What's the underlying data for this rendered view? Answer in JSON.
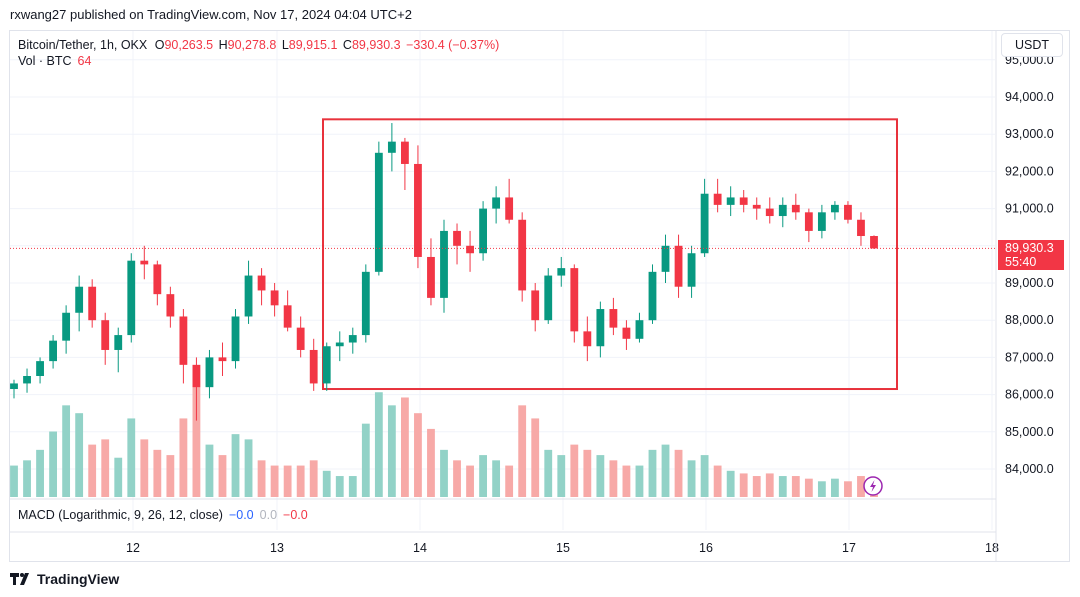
{
  "publisher": {
    "text": "rxwang27 published on TradingView.com, Nov 17, 2024 04:04 UTC+2"
  },
  "legend": {
    "symbol": "Bitcoin/Tether, 1h, OKX",
    "o_label": "O",
    "o_value": "90,263.5",
    "h_label": "H",
    "h_value": "90,278.8",
    "l_label": "L",
    "l_value": "89,915.1",
    "c_label": "C",
    "c_value": "89,930.3",
    "change": "−330.4 (−0.37%)"
  },
  "volume": {
    "label": "Vol · BTC",
    "value": "64"
  },
  "currency": "USDT",
  "last_price": {
    "value": "89,930.3",
    "countdown": "55:40",
    "color": "#f23645"
  },
  "macd": {
    "label": "MACD (Logarithmic, 9, 26, 12, close)",
    "v1": "−0.0",
    "v2": "0.0",
    "v3": "−0.0"
  },
  "brand": "TradingView",
  "colors": {
    "up": "#089981",
    "down": "#f23645",
    "up_vol": "#92d2c7",
    "down_vol": "#f7a9a7",
    "box": "#e8323c"
  },
  "chart_data": {
    "type": "candlestick",
    "y_ticks": [
      "84,000.0",
      "85,000.0",
      "86,000.0",
      "87,000.0",
      "88,000.0",
      "89,000.0",
      "90,000.0",
      "91,000.0",
      "92,000.0",
      "93,000.0",
      "94,000.0",
      "95,000.0"
    ],
    "x_ticks": [
      "12",
      "13",
      "14",
      "15",
      "16",
      "17",
      "18"
    ],
    "ylim": [
      83500,
      95300
    ],
    "annotation": {
      "type": "rectangle",
      "x_from": "Nov 13 ~08:00",
      "x_to": "Nov 17 ~06:00",
      "y_from": 86150,
      "y_to": 93400
    },
    "candles": [
      {
        "o": 86150,
        "h": 86400,
        "l": 85900,
        "c": 86300,
        "v": 12
      },
      {
        "o": 86300,
        "h": 86700,
        "l": 86050,
        "c": 86500,
        "v": 14
      },
      {
        "o": 86500,
        "h": 87000,
        "l": 86300,
        "c": 86900,
        "v": 18
      },
      {
        "o": 86900,
        "h": 87600,
        "l": 86700,
        "c": 87450,
        "v": 25
      },
      {
        "o": 87450,
        "h": 88400,
        "l": 87100,
        "c": 88200,
        "v": 35
      },
      {
        "o": 88200,
        "h": 89200,
        "l": 87700,
        "c": 88900,
        "v": 32
      },
      {
        "o": 88900,
        "h": 89100,
        "l": 87800,
        "c": 88000,
        "v": 20
      },
      {
        "o": 88000,
        "h": 88200,
        "l": 86800,
        "c": 87200,
        "v": 22
      },
      {
        "o": 87200,
        "h": 87800,
        "l": 86600,
        "c": 87600,
        "v": 15
      },
      {
        "o": 87600,
        "h": 89800,
        "l": 87400,
        "c": 89600,
        "v": 30
      },
      {
        "o": 89600,
        "h": 90000,
        "l": 89100,
        "c": 89500,
        "v": 22
      },
      {
        "o": 89500,
        "h": 89600,
        "l": 88400,
        "c": 88700,
        "v": 18
      },
      {
        "o": 88700,
        "h": 88900,
        "l": 87800,
        "c": 88100,
        "v": 16
      },
      {
        "o": 88100,
        "h": 88300,
        "l": 86300,
        "c": 86800,
        "v": 30
      },
      {
        "o": 86800,
        "h": 87000,
        "l": 85300,
        "c": 86200,
        "v": 42
      },
      {
        "o": 86200,
        "h": 87200,
        "l": 85900,
        "c": 87000,
        "v": 20
      },
      {
        "o": 87000,
        "h": 87400,
        "l": 86500,
        "c": 86900,
        "v": 16
      },
      {
        "o": 86900,
        "h": 88300,
        "l": 86700,
        "c": 88100,
        "v": 24
      },
      {
        "o": 88100,
        "h": 89600,
        "l": 87900,
        "c": 89200,
        "v": 22
      },
      {
        "o": 89200,
        "h": 89400,
        "l": 88400,
        "c": 88800,
        "v": 14
      },
      {
        "o": 88800,
        "h": 89000,
        "l": 88100,
        "c": 88400,
        "v": 12
      },
      {
        "o": 88400,
        "h": 88800,
        "l": 87700,
        "c": 87800,
        "v": 12
      },
      {
        "o": 87800,
        "h": 88100,
        "l": 87000,
        "c": 87200,
        "v": 12
      },
      {
        "o": 87200,
        "h": 87500,
        "l": 86100,
        "c": 86300,
        "v": 14
      },
      {
        "o": 86300,
        "h": 87400,
        "l": 86100,
        "c": 87300,
        "v": 10
      },
      {
        "o": 87300,
        "h": 87700,
        "l": 86900,
        "c": 87400,
        "v": 8
      },
      {
        "o": 87400,
        "h": 87800,
        "l": 87100,
        "c": 87600,
        "v": 8
      },
      {
        "o": 87600,
        "h": 89500,
        "l": 87400,
        "c": 89300,
        "v": 28
      },
      {
        "o": 89300,
        "h": 92800,
        "l": 89200,
        "c": 92500,
        "v": 40
      },
      {
        "o": 92500,
        "h": 93300,
        "l": 92000,
        "c": 92800,
        "v": 35
      },
      {
        "o": 92800,
        "h": 92900,
        "l": 91500,
        "c": 92200,
        "v": 38
      },
      {
        "o": 92200,
        "h": 92700,
        "l": 89400,
        "c": 89700,
        "v": 32
      },
      {
        "o": 89700,
        "h": 90200,
        "l": 88400,
        "c": 88600,
        "v": 26
      },
      {
        "o": 88600,
        "h": 90700,
        "l": 88200,
        "c": 90400,
        "v": 18
      },
      {
        "o": 90400,
        "h": 90600,
        "l": 89500,
        "c": 90000,
        "v": 14
      },
      {
        "o": 90000,
        "h": 90400,
        "l": 89300,
        "c": 89800,
        "v": 12
      },
      {
        "o": 89800,
        "h": 91200,
        "l": 89600,
        "c": 91000,
        "v": 16
      },
      {
        "o": 91000,
        "h": 91600,
        "l": 90600,
        "c": 91300,
        "v": 14
      },
      {
        "o": 91300,
        "h": 91800,
        "l": 90600,
        "c": 90700,
        "v": 12
      },
      {
        "o": 90700,
        "h": 90900,
        "l": 88500,
        "c": 88800,
        "v": 35
      },
      {
        "o": 88800,
        "h": 89000,
        "l": 87700,
        "c": 88000,
        "v": 30
      },
      {
        "o": 88000,
        "h": 89400,
        "l": 87900,
        "c": 89200,
        "v": 18
      },
      {
        "o": 89200,
        "h": 89700,
        "l": 88900,
        "c": 89400,
        "v": 16
      },
      {
        "o": 89400,
        "h": 89500,
        "l": 87400,
        "c": 87700,
        "v": 20
      },
      {
        "o": 87700,
        "h": 88100,
        "l": 86900,
        "c": 87300,
        "v": 18
      },
      {
        "o": 87300,
        "h": 88500,
        "l": 87000,
        "c": 88300,
        "v": 16
      },
      {
        "o": 88300,
        "h": 88600,
        "l": 87600,
        "c": 87800,
        "v": 14
      },
      {
        "o": 87800,
        "h": 88000,
        "l": 87200,
        "c": 87500,
        "v": 12
      },
      {
        "o": 87500,
        "h": 88200,
        "l": 87400,
        "c": 88000,
        "v": 12
      },
      {
        "o": 88000,
        "h": 89500,
        "l": 87900,
        "c": 89300,
        "v": 18
      },
      {
        "o": 89300,
        "h": 90300,
        "l": 89000,
        "c": 90000,
        "v": 20
      },
      {
        "o": 90000,
        "h": 90300,
        "l": 88600,
        "c": 88900,
        "v": 18
      },
      {
        "o": 88900,
        "h": 90000,
        "l": 88600,
        "c": 89800,
        "v": 14
      },
      {
        "o": 89800,
        "h": 91800,
        "l": 89700,
        "c": 91400,
        "v": 16
      },
      {
        "o": 91400,
        "h": 91800,
        "l": 90900,
        "c": 91100,
        "v": 12
      },
      {
        "o": 91100,
        "h": 91600,
        "l": 90800,
        "c": 91300,
        "v": 10
      },
      {
        "o": 91300,
        "h": 91500,
        "l": 90900,
        "c": 91100,
        "v": 9
      },
      {
        "o": 91100,
        "h": 91300,
        "l": 90700,
        "c": 91000,
        "v": 8
      },
      {
        "o": 91000,
        "h": 91300,
        "l": 90600,
        "c": 90800,
        "v": 9
      },
      {
        "o": 90800,
        "h": 91300,
        "l": 90500,
        "c": 91100,
        "v": 8
      },
      {
        "o": 91100,
        "h": 91400,
        "l": 90700,
        "c": 90900,
        "v": 8
      },
      {
        "o": 90900,
        "h": 91000,
        "l": 90100,
        "c": 90400,
        "v": 7
      },
      {
        "o": 90400,
        "h": 91100,
        "l": 90200,
        "c": 90900,
        "v": 6
      },
      {
        "o": 90900,
        "h": 91200,
        "l": 90700,
        "c": 91100,
        "v": 7
      },
      {
        "o": 91100,
        "h": 91200,
        "l": 90600,
        "c": 90700,
        "v": 6
      },
      {
        "o": 90700,
        "h": 90900,
        "l": 90000,
        "c": 90263,
        "v": 8
      },
      {
        "o": 90263,
        "h": 90279,
        "l": 89915,
        "c": 89930,
        "v": 6
      }
    ]
  }
}
